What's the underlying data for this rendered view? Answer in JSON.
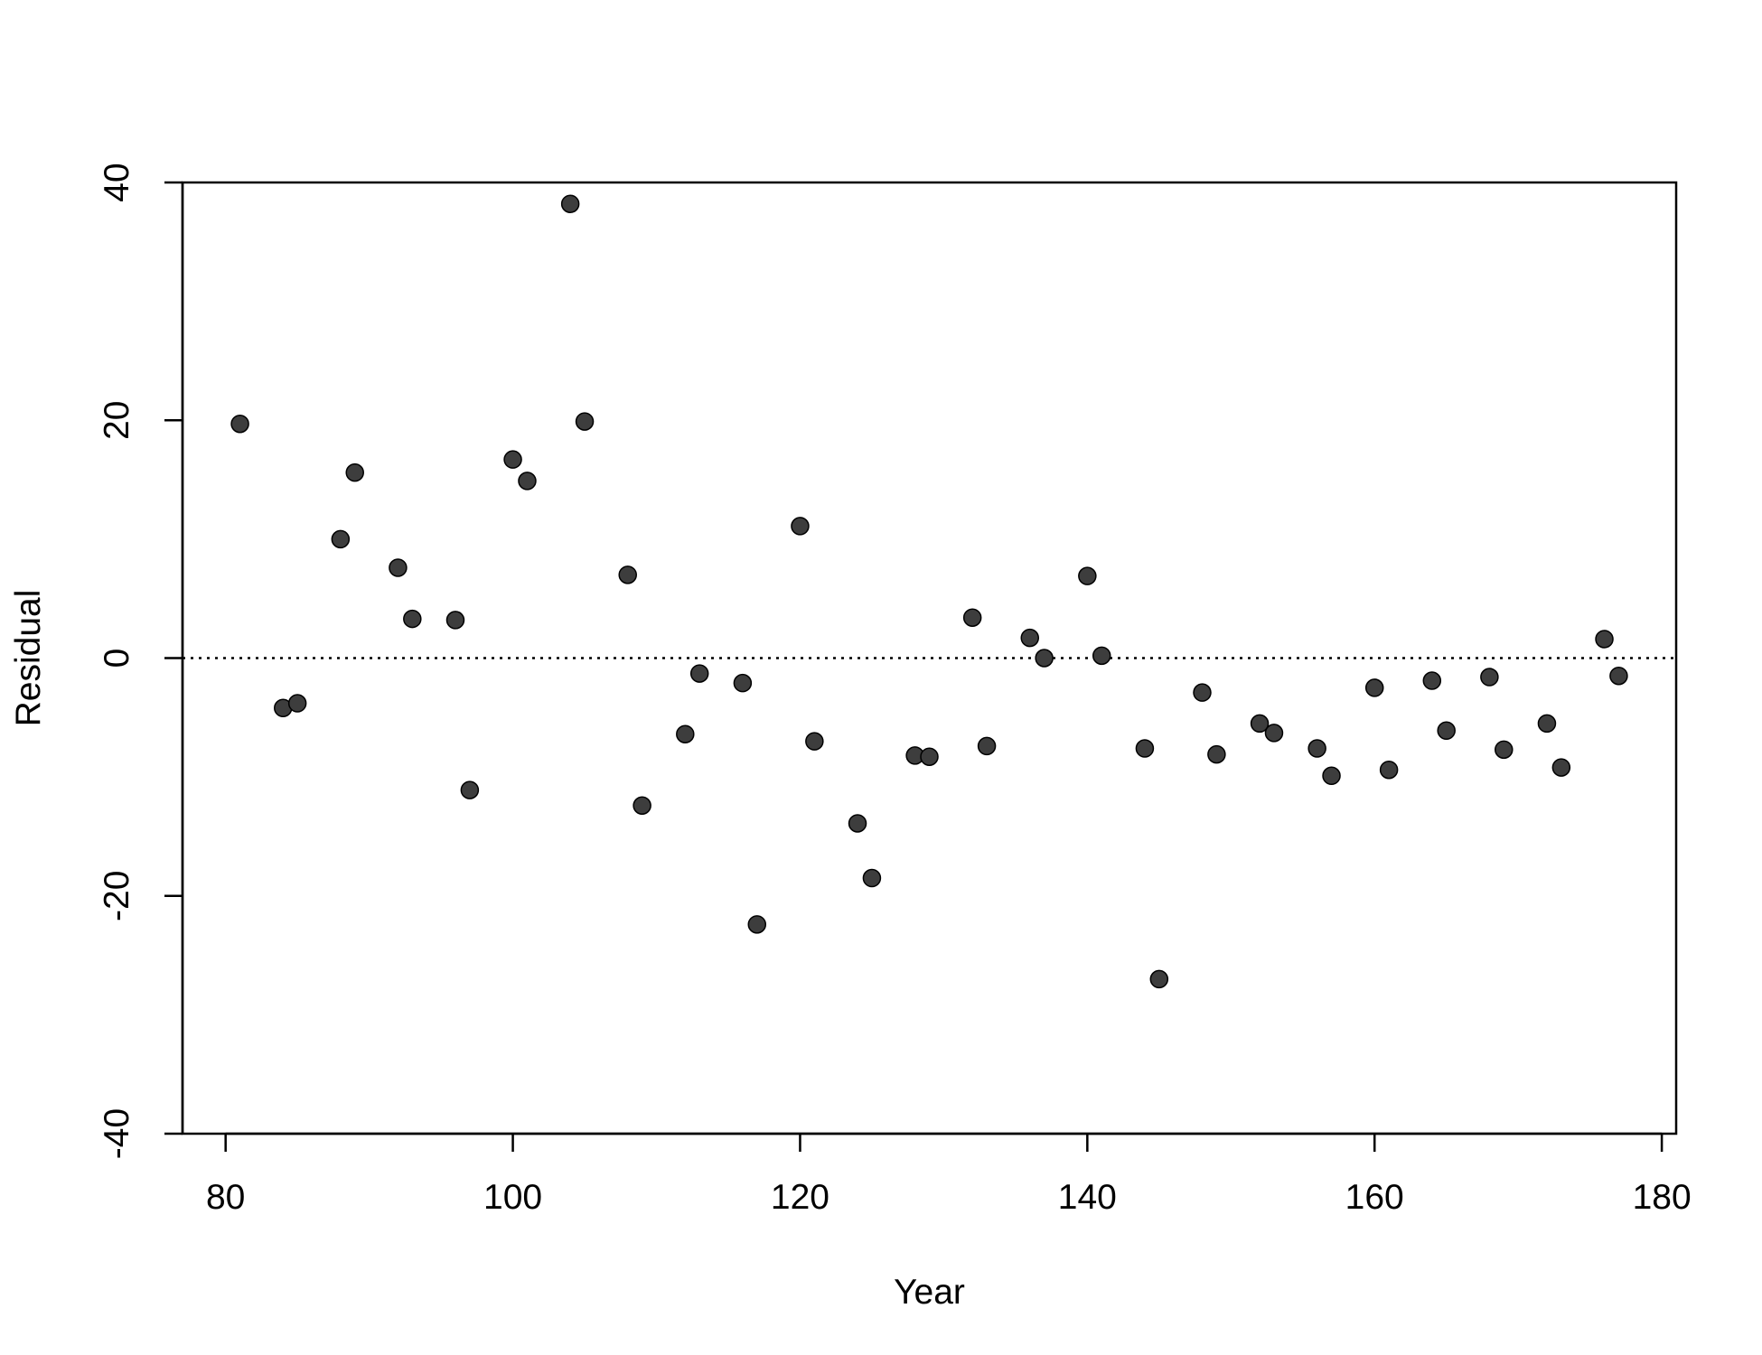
{
  "chart_data": {
    "type": "scatter",
    "title": "",
    "xlabel": "Year",
    "ylabel": "Residual",
    "xlim": [
      77,
      181
    ],
    "ylim": [
      -40,
      40
    ],
    "x_ticks": [
      80,
      100,
      120,
      140,
      160,
      180
    ],
    "y_ticks": [
      -40,
      -20,
      0,
      20,
      40
    ],
    "x_tick_labels": [
      "80",
      "100",
      "120",
      "140",
      "160",
      "180"
    ],
    "y_tick_labels": [
      "-40",
      "-20",
      "0",
      "20",
      "40"
    ],
    "reference_line": {
      "y": 0,
      "style": "dotted"
    },
    "grid": false,
    "point_color": "#3d3d3d",
    "series": [
      {
        "points": [
          {
            "x": 81,
            "y": 19.7
          },
          {
            "x": 84,
            "y": -4.2
          },
          {
            "x": 85,
            "y": -3.8
          },
          {
            "x": 88,
            "y": 10.0
          },
          {
            "x": 89,
            "y": 15.6
          },
          {
            "x": 92,
            "y": 7.6
          },
          {
            "x": 93,
            "y": 3.3
          },
          {
            "x": 96,
            "y": 3.2
          },
          {
            "x": 97,
            "y": -11.1
          },
          {
            "x": 100,
            "y": 16.7
          },
          {
            "x": 101,
            "y": 14.9
          },
          {
            "x": 104,
            "y": 38.2
          },
          {
            "x": 105,
            "y": 19.9
          },
          {
            "x": 108,
            "y": 7.0
          },
          {
            "x": 109,
            "y": -12.4
          },
          {
            "x": 112,
            "y": -6.4
          },
          {
            "x": 113,
            "y": -1.3
          },
          {
            "x": 116,
            "y": -2.1
          },
          {
            "x": 117,
            "y": -22.4
          },
          {
            "x": 120,
            "y": 11.1
          },
          {
            "x": 121,
            "y": -7.0
          },
          {
            "x": 124,
            "y": -13.9
          },
          {
            "x": 125,
            "y": -18.5
          },
          {
            "x": 128,
            "y": -8.2
          },
          {
            "x": 129,
            "y": -8.3
          },
          {
            "x": 132,
            "y": 3.4
          },
          {
            "x": 133,
            "y": -7.4
          },
          {
            "x": 136,
            "y": 1.7
          },
          {
            "x": 137,
            "y": 0.0
          },
          {
            "x": 140,
            "y": 6.9
          },
          {
            "x": 141,
            "y": 0.2
          },
          {
            "x": 144,
            "y": -7.6
          },
          {
            "x": 145,
            "y": -27.0
          },
          {
            "x": 148,
            "y": -2.9
          },
          {
            "x": 149,
            "y": -8.1
          },
          {
            "x": 152,
            "y": -5.5
          },
          {
            "x": 153,
            "y": -6.3
          },
          {
            "x": 156,
            "y": -7.6
          },
          {
            "x": 157,
            "y": -9.9
          },
          {
            "x": 160,
            "y": -2.5
          },
          {
            "x": 161,
            "y": -9.4
          },
          {
            "x": 164,
            "y": -1.9
          },
          {
            "x": 165,
            "y": -6.1
          },
          {
            "x": 168,
            "y": -1.6
          },
          {
            "x": 169,
            "y": -7.7
          },
          {
            "x": 172,
            "y": -5.5
          },
          {
            "x": 173,
            "y": -9.2
          },
          {
            "x": 176,
            "y": 1.6
          },
          {
            "x": 177,
            "y": -1.5
          }
        ]
      }
    ]
  }
}
